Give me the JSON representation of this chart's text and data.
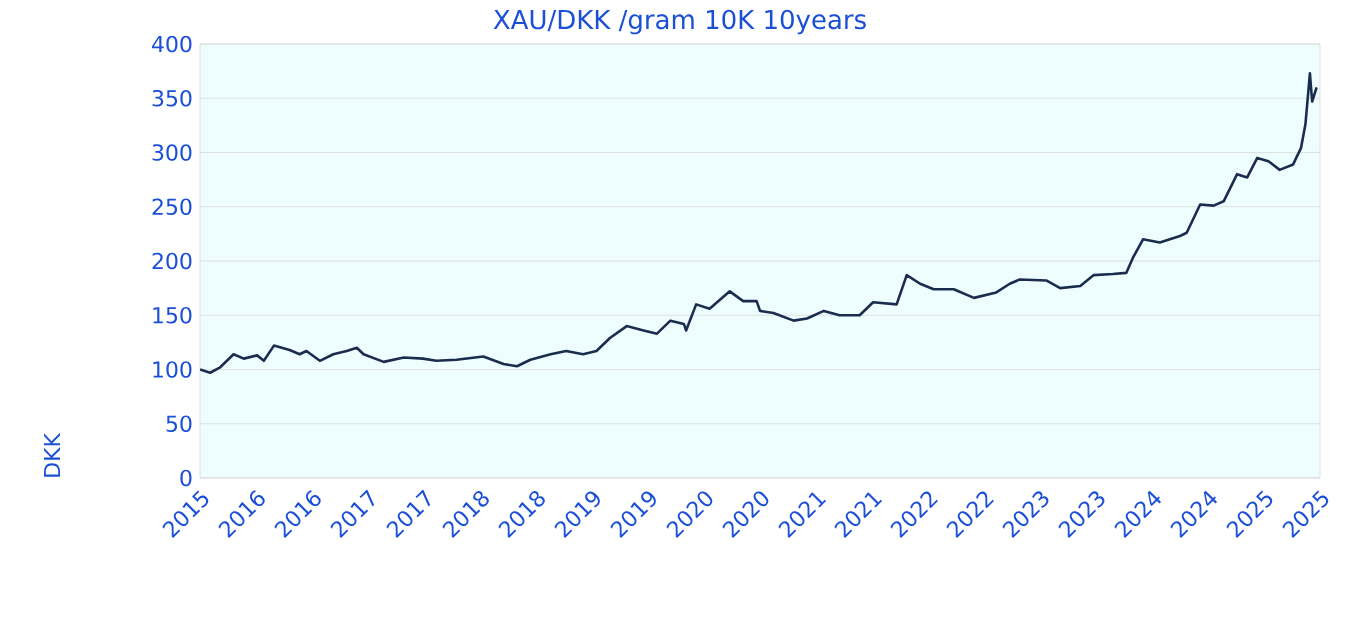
{
  "chart_data": {
    "type": "line",
    "title": "XAU/DKK /gram 10K 10years",
    "ylabel": "DKK",
    "xlim": [
      2015.3,
      2025.3
    ],
    "ylim": [
      0,
      400
    ],
    "yticks": [
      0,
      50,
      100,
      150,
      200,
      250,
      300,
      350,
      400
    ],
    "xticks": [
      {
        "value": 2015.3,
        "label": "2015"
      },
      {
        "value": 2015.8,
        "label": "2016"
      },
      {
        "value": 2016.3,
        "label": "2016"
      },
      {
        "value": 2016.8,
        "label": "2017"
      },
      {
        "value": 2017.3,
        "label": "2017"
      },
      {
        "value": 2017.8,
        "label": "2018"
      },
      {
        "value": 2018.3,
        "label": "2018"
      },
      {
        "value": 2018.8,
        "label": "2019"
      },
      {
        "value": 2019.3,
        "label": "2019"
      },
      {
        "value": 2019.8,
        "label": "2020"
      },
      {
        "value": 2020.3,
        "label": "2020"
      },
      {
        "value": 2020.8,
        "label": "2021"
      },
      {
        "value": 2021.3,
        "label": "2021"
      },
      {
        "value": 2021.8,
        "label": "2022"
      },
      {
        "value": 2022.3,
        "label": "2022"
      },
      {
        "value": 2022.8,
        "label": "2023"
      },
      {
        "value": 2023.3,
        "label": "2023"
      },
      {
        "value": 2023.8,
        "label": "2024"
      },
      {
        "value": 2024.3,
        "label": "2024"
      },
      {
        "value": 2024.8,
        "label": "2025"
      },
      {
        "value": 2025.3,
        "label": "2025"
      }
    ],
    "grid": "y",
    "series": [
      {
        "color": "#1b2d4f",
        "x": [
          2015.3,
          2015.39,
          2015.48,
          2015.6,
          2015.69,
          2015.81,
          2015.87,
          2015.96,
          2016.1,
          2016.19,
          2016.25,
          2016.37,
          2016.49,
          2016.61,
          2016.7,
          2016.76,
          2016.94,
          2017.12,
          2017.29,
          2017.41,
          2017.59,
          2017.83,
          2018.01,
          2018.13,
          2018.25,
          2018.43,
          2018.57,
          2018.72,
          2018.84,
          2018.96,
          2019.11,
          2019.26,
          2019.38,
          2019.5,
          2019.62,
          2019.64,
          2019.73,
          2019.85,
          2020.03,
          2020.15,
          2020.27,
          2020.3,
          2020.42,
          2020.6,
          2020.72,
          2020.87,
          2021.01,
          2021.19,
          2021.31,
          2021.52,
          2021.61,
          2021.73,
          2021.85,
          2022.03,
          2022.21,
          2022.41,
          2022.53,
          2022.62,
          2022.86,
          2022.98,
          2023.16,
          2023.28,
          2023.45,
          2023.57,
          2023.63,
          2023.72,
          2023.87,
          2024.05,
          2024.11,
          2024.23,
          2024.35,
          2024.44,
          2024.56,
          2024.65,
          2024.74,
          2024.84,
          2024.94,
          2025.06,
          2025.13,
          2025.17,
          2025.21,
          2025.23,
          2025.27
        ],
        "values": [
          100,
          97,
          102,
          114,
          110,
          113,
          108,
          122,
          118,
          114,
          117,
          108,
          114,
          117,
          120,
          114,
          107,
          111,
          110,
          108,
          109,
          112,
          105,
          103,
          109,
          114,
          117,
          114,
          117,
          129,
          140,
          136,
          133,
          145,
          142,
          136,
          160,
          156,
          172,
          163,
          163,
          154,
          152,
          145,
          147,
          154,
          150,
          150,
          162,
          160,
          187,
          179,
          174,
          174,
          166,
          171,
          179,
          183,
          182,
          175,
          177,
          187,
          188,
          189,
          203,
          220,
          217,
          223,
          226,
          252,
          251,
          255,
          280,
          277,
          295,
          292,
          284,
          289,
          304,
          326,
          373,
          347,
          360
        ]
      }
    ]
  }
}
